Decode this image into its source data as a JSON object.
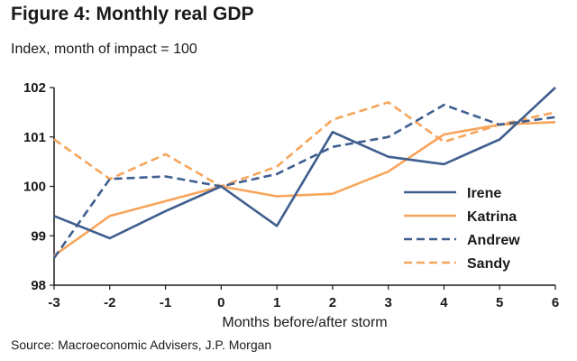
{
  "chart_data": {
    "type": "line",
    "title": "Figure 4: Monthly real GDP",
    "subtitle": "Index, month of impact = 100",
    "xlabel": "Months before/after storm",
    "ylabel": "",
    "source": "Source: Macroeconomic Advisers, J.P. Morgan",
    "x": [
      -3,
      -2,
      -1,
      0,
      1,
      2,
      3,
      4,
      5,
      6
    ],
    "xticks": [
      "-3",
      "-2",
      "-1",
      "0",
      "1",
      "2",
      "3",
      "4",
      "5",
      "6"
    ],
    "yticks": [
      "98",
      "99",
      "100",
      "101",
      "102"
    ],
    "ylim": [
      98,
      102
    ],
    "grid": false,
    "legend_position": "right",
    "series": [
      {
        "name": "Irene",
        "color": "#3f5f8f",
        "dash": false,
        "values": [
          99.4,
          98.95,
          99.5,
          100.0,
          99.2,
          101.1,
          100.6,
          100.45,
          100.95,
          102.0
        ]
      },
      {
        "name": "Katrina",
        "color": "#f7a55a",
        "dash": false,
        "values": [
          98.6,
          99.4,
          99.7,
          100.0,
          99.8,
          99.85,
          100.3,
          101.05,
          101.25,
          101.3
        ]
      },
      {
        "name": "Andrew",
        "color": "#3f5f8f",
        "dash": true,
        "values": [
          98.55,
          100.15,
          100.2,
          100.0,
          100.25,
          100.8,
          101.0,
          101.65,
          101.25,
          101.4
        ]
      },
      {
        "name": "Sandy",
        "color": "#f7a55a",
        "dash": true,
        "values": [
          100.95,
          100.15,
          100.65,
          100.0,
          100.4,
          101.35,
          101.7,
          100.9,
          101.25,
          101.5
        ]
      }
    ]
  }
}
